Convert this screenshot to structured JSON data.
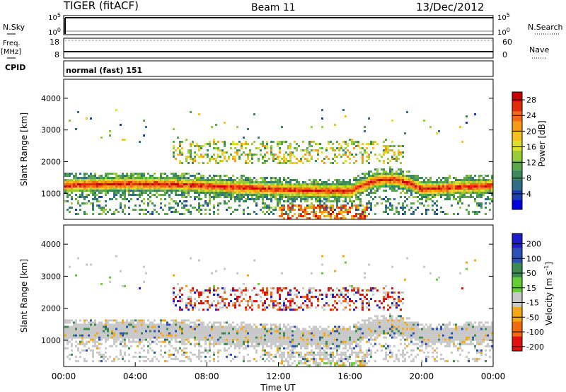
{
  "header": {
    "station": "TIGER (fitACF)",
    "beam": "Beam 11",
    "date": "13/Dec/2012"
  },
  "ctrl_labels": {
    "nsky": "N.Sky",
    "freq": "Freq.",
    "mhz": "[MHz]",
    "cpid": "CPID",
    "nsearch": "N.Search",
    "nave": "Nave",
    "cpid_value": "normal (fast) 151",
    "nsky_ticks": [
      "10^5",
      "10^0"
    ],
    "nsearch_ticks": [
      "10^5",
      "10^0"
    ],
    "freq_ticks": [
      "18",
      "8"
    ],
    "nave_ticks": [
      "60",
      "0"
    ]
  },
  "chart_data": [
    {
      "type": "heatmap",
      "title": "",
      "xlabel": "",
      "ylabel": "Slant Range [km]",
      "xlim": [
        0,
        24
      ],
      "ylim": [
        180,
        4600
      ],
      "x_ticks": [
        "00:00",
        "04:00",
        "08:00",
        "12:00",
        "16:00",
        "20:00",
        "00:00"
      ],
      "y_ticks": [
        1000,
        2000,
        3000,
        4000
      ],
      "colorbar": {
        "label": "Power [dB]",
        "ticks": [
          4,
          8,
          12,
          16,
          20,
          24,
          28
        ],
        "range": [
          0,
          30
        ],
        "colors": [
          "#0000dd",
          "#1a3fb0",
          "#2e6f86",
          "#3c8a5c",
          "#5aa84a",
          "#9acc3a",
          "#dde030",
          "#f6c020",
          "#f69a18",
          "#f46a10",
          "#e02c08",
          "#c80000"
        ]
      },
      "features": [
        {
          "name": "main echo band",
          "time_start": 0,
          "time_end": 24,
          "range_start": 1000,
          "range_end": 1450,
          "peak_power_db": 28
        },
        {
          "name": "upper echoes",
          "time_start": 6,
          "time_end": 19,
          "range_start": 1900,
          "range_end": 2600,
          "peak_power_db": 22
        },
        {
          "name": "near-range echoes",
          "time_start": 12,
          "time_end": 17,
          "range_start": 200,
          "range_end": 600,
          "peak_power_db": 26
        }
      ]
    },
    {
      "type": "heatmap",
      "title": "",
      "xlabel": "Time UT",
      "ylabel": "Slant Range [km]",
      "xlim": [
        0,
        24
      ],
      "ylim": [
        180,
        4600
      ],
      "x_ticks": [
        "00:00",
        "04:00",
        "08:00",
        "12:00",
        "16:00",
        "20:00",
        "00:00"
      ],
      "y_ticks": [
        1000,
        2000,
        3000,
        4000
      ],
      "colorbar": {
        "label": "Velocity [m s^-1]",
        "ticks": [
          200,
          100,
          50,
          15,
          -15,
          -50,
          -100,
          -200
        ],
        "colors": [
          "#1e1ec8",
          "#2a52b4",
          "#3b8a52",
          "#66cc33",
          "#c8c8c8",
          "#f3a814",
          "#f06a10",
          "#e01010"
        ]
      },
      "features": [
        {
          "name": "ground scatter band",
          "time_start": 0,
          "time_end": 24,
          "range_start": 400,
          "range_end": 1500,
          "velocity": 0
        },
        {
          "name": "ionospheric echoes",
          "time_start": 8,
          "time_end": 16,
          "range_start": 1900,
          "range_end": 2600,
          "velocity": -100
        }
      ]
    }
  ]
}
